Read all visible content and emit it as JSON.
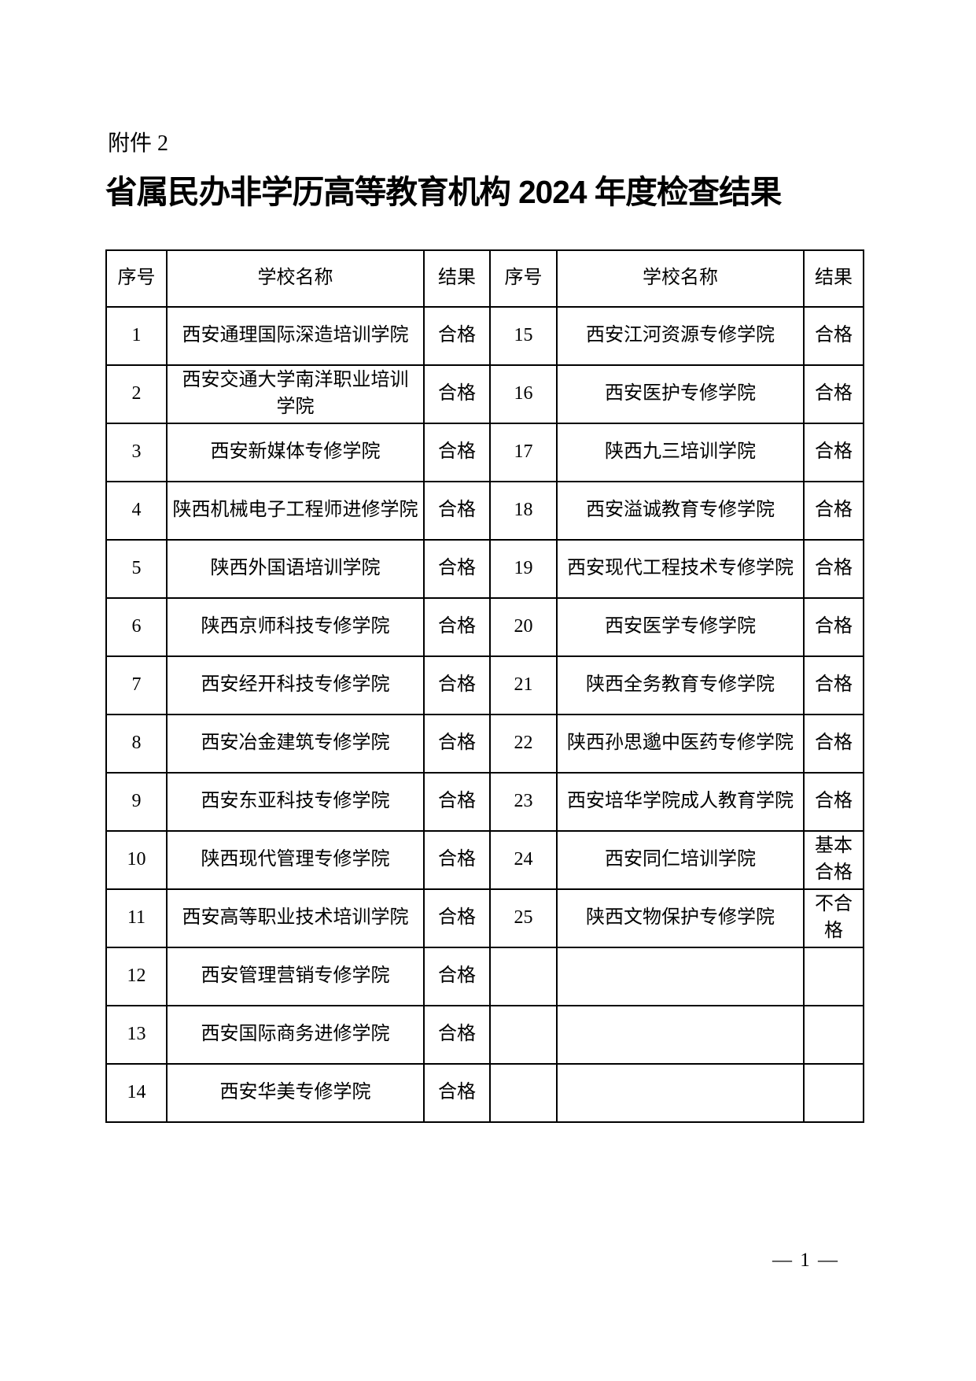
{
  "page": {
    "attachment_label": "附件 2",
    "title": "省属民办非学历高等教育机构 2024 年度检查结果",
    "page_number": "— 1 —"
  },
  "table": {
    "header_cells": [
      "序号",
      "学校名称",
      "结果",
      "序号",
      "学校名称",
      "结果"
    ],
    "rows": [
      {
        "l_no": "1",
        "l_school": "西安通理国际深造培训学院",
        "l_result": "合格",
        "r_no": "15",
        "r_school": "西安江河资源专修学院",
        "r_result": "合格"
      },
      {
        "l_no": "2",
        "l_school": "西安交通大学南洋职业培训\n学院",
        "l_result": "合格",
        "r_no": "16",
        "r_school": "西安医护专修学院",
        "r_result": "合格"
      },
      {
        "l_no": "3",
        "l_school": "西安新媒体专修学院",
        "l_result": "合格",
        "r_no": "17",
        "r_school": "陕西九三培训学院",
        "r_result": "合格"
      },
      {
        "l_no": "4",
        "l_school": "陕西机械电子工程师进修学院",
        "l_result": "合格",
        "r_no": "18",
        "r_school": "西安溢诚教育专修学院",
        "r_result": "合格"
      },
      {
        "l_no": "5",
        "l_school": "陕西外国语培训学院",
        "l_result": "合格",
        "r_no": "19",
        "r_school": "西安现代工程技术专修学院",
        "r_result": "合格"
      },
      {
        "l_no": "6",
        "l_school": "陕西京师科技专修学院",
        "l_result": "合格",
        "r_no": "20",
        "r_school": "西安医学专修学院",
        "r_result": "合格"
      },
      {
        "l_no": "7",
        "l_school": "西安经开科技专修学院",
        "l_result": "合格",
        "r_no": "21",
        "r_school": "陕西全务教育专修学院",
        "r_result": "合格"
      },
      {
        "l_no": "8",
        "l_school": "西安冶金建筑专修学院",
        "l_result": "合格",
        "r_no": "22",
        "r_school": "陕西孙思邈中医药专修学院",
        "r_result": "合格"
      },
      {
        "l_no": "9",
        "l_school": "西安东亚科技专修学院",
        "l_result": "合格",
        "r_no": "23",
        "r_school": "西安培华学院成人教育学院",
        "r_result": "合格"
      },
      {
        "l_no": "10",
        "l_school": "陕西现代管理专修学院",
        "l_result": "合格",
        "r_no": "24",
        "r_school": "西安同仁培训学院",
        "r_result": "基本\n合格"
      },
      {
        "l_no": "11",
        "l_school": "西安高等职业技术培训学院",
        "l_result": "合格",
        "r_no": "25",
        "r_school": "陕西文物保护专修学院",
        "r_result": "不合\n格"
      },
      {
        "l_no": "12",
        "l_school": "西安管理营销专修学院",
        "l_result": "合格",
        "r_no": "",
        "r_school": "",
        "r_result": ""
      },
      {
        "l_no": "13",
        "l_school": "西安国际商务进修学院",
        "l_result": "合格",
        "r_no": "",
        "r_school": "",
        "r_result": ""
      },
      {
        "l_no": "14",
        "l_school": "西安华美专修学院",
        "l_result": "合格",
        "r_no": "",
        "r_school": "",
        "r_result": ""
      }
    ]
  }
}
